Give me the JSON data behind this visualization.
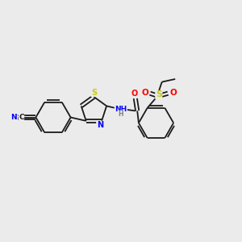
{
  "background_color": "#ebebeb",
  "bond_color": "#1a1a1a",
  "atom_colors": {
    "N": "#0000ff",
    "S": "#cccc00",
    "O": "#ff0000",
    "C": "#1a1a1a",
    "H": "#808080"
  },
  "figsize": [
    3.0,
    3.0
  ],
  "dpi": 100,
  "xlim": [
    0,
    10
  ],
  "ylim": [
    0,
    10
  ]
}
